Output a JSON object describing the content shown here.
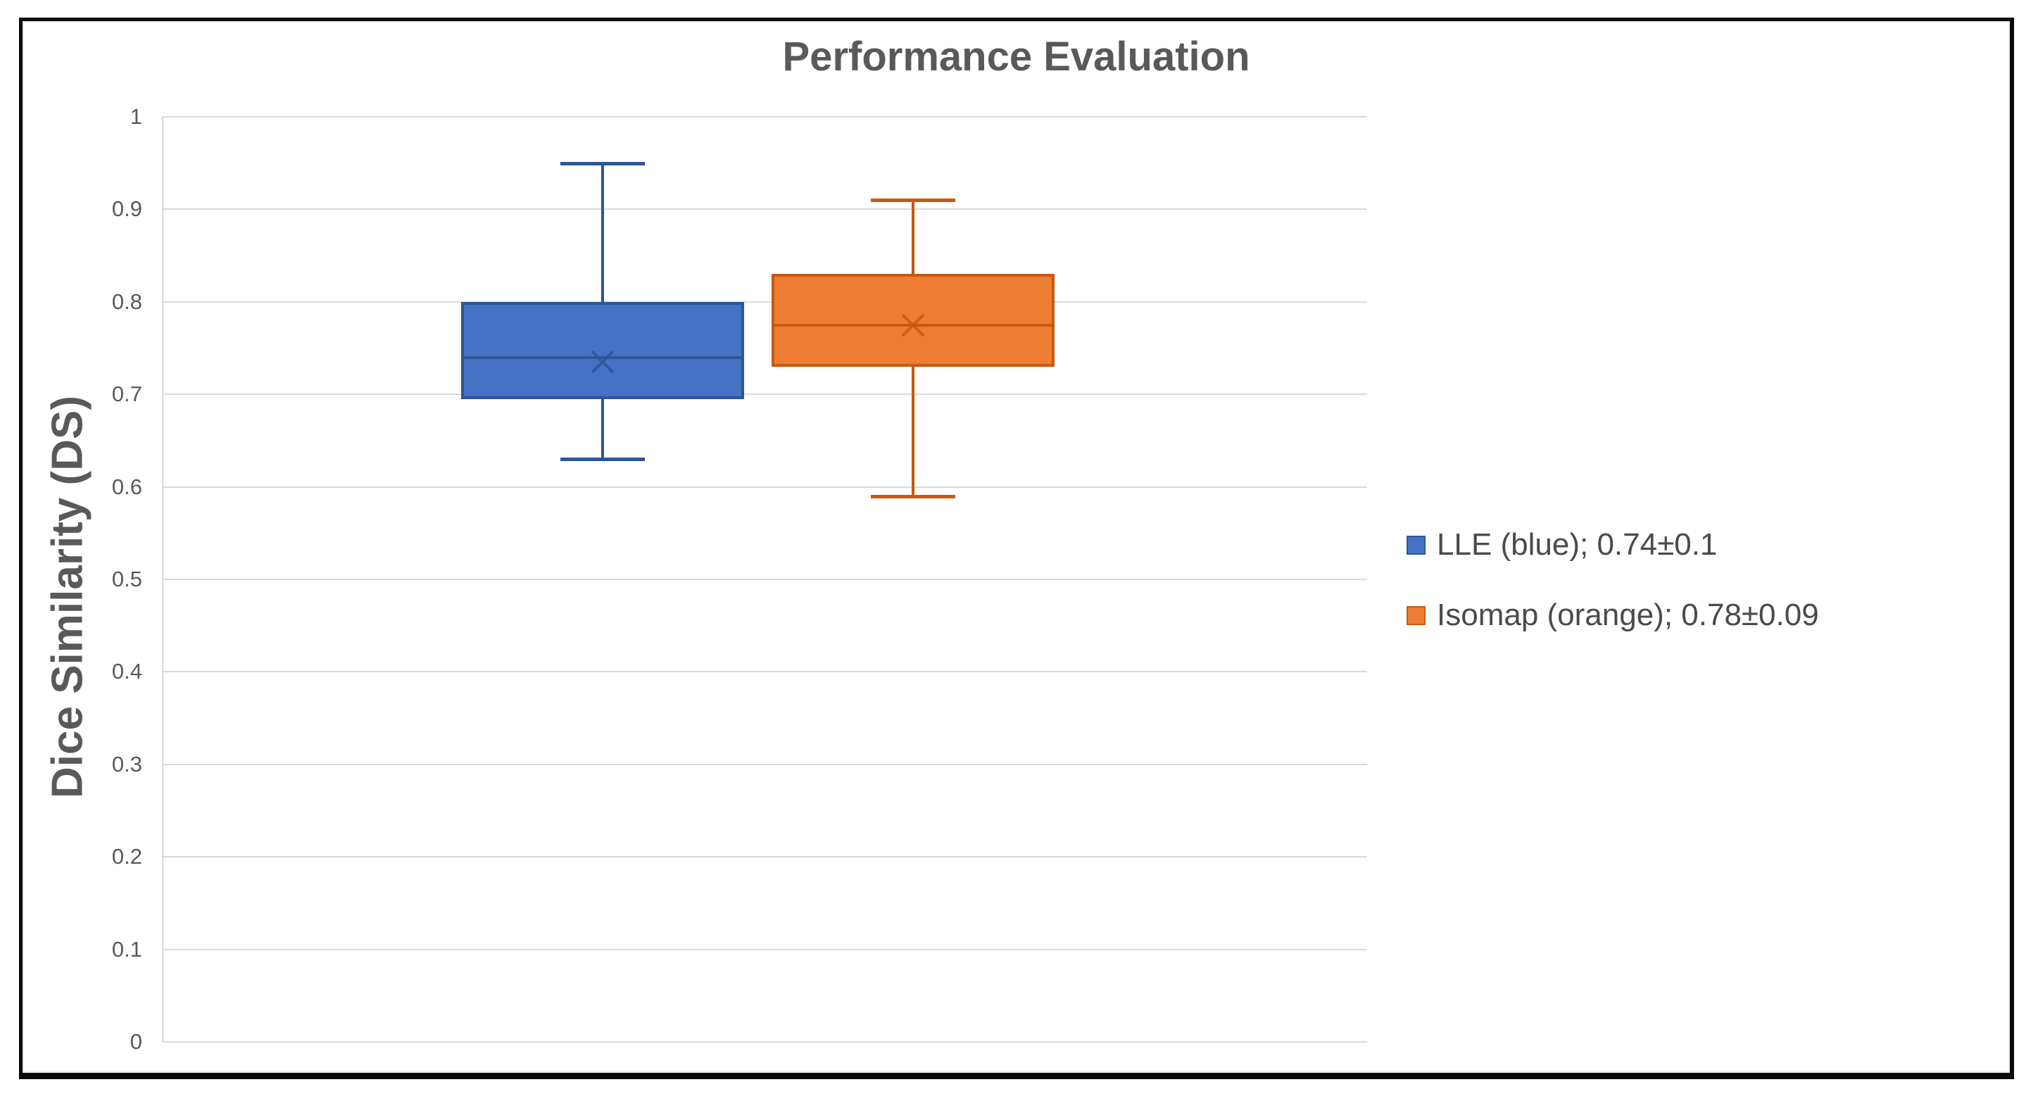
{
  "chart_data": {
    "type": "boxplot",
    "title": "Performance Evaluation",
    "ylabel": "Dice Similarity (DS)",
    "ylim": [
      0,
      1
    ],
    "yticks": [
      "1",
      "0.9",
      "0.8",
      "0.7",
      "0.6",
      "0.5",
      "0.4",
      "0.3",
      "0.2",
      "0.1",
      "0"
    ],
    "grid": true,
    "legend_position": "right-middle",
    "colors": {
      "gridline": "#D9D9D9",
      "axis_line": "#D9D9D9",
      "title_text": "#595959",
      "tick_text": "#595959",
      "legend_text": "#4A4A4A",
      "frame_border": "#000000"
    },
    "series": [
      {
        "name": "LLE",
        "legend_label": "LLE (blue); 0.74±0.1",
        "fill": "#4472C4",
        "line": "#2F5597",
        "whisker_low": 0.63,
        "q1": 0.695,
        "median": 0.74,
        "q3": 0.8,
        "whisker_high": 0.95,
        "mean": 0.735
      },
      {
        "name": "Isomap",
        "legend_label": "Isomap (orange); 0.78±0.09",
        "fill": "#ED7D31",
        "line": "#C55A11",
        "whisker_low": 0.59,
        "q1": 0.73,
        "median": 0.775,
        "q3": 0.83,
        "whisker_high": 0.91,
        "mean": 0.775
      }
    ]
  }
}
